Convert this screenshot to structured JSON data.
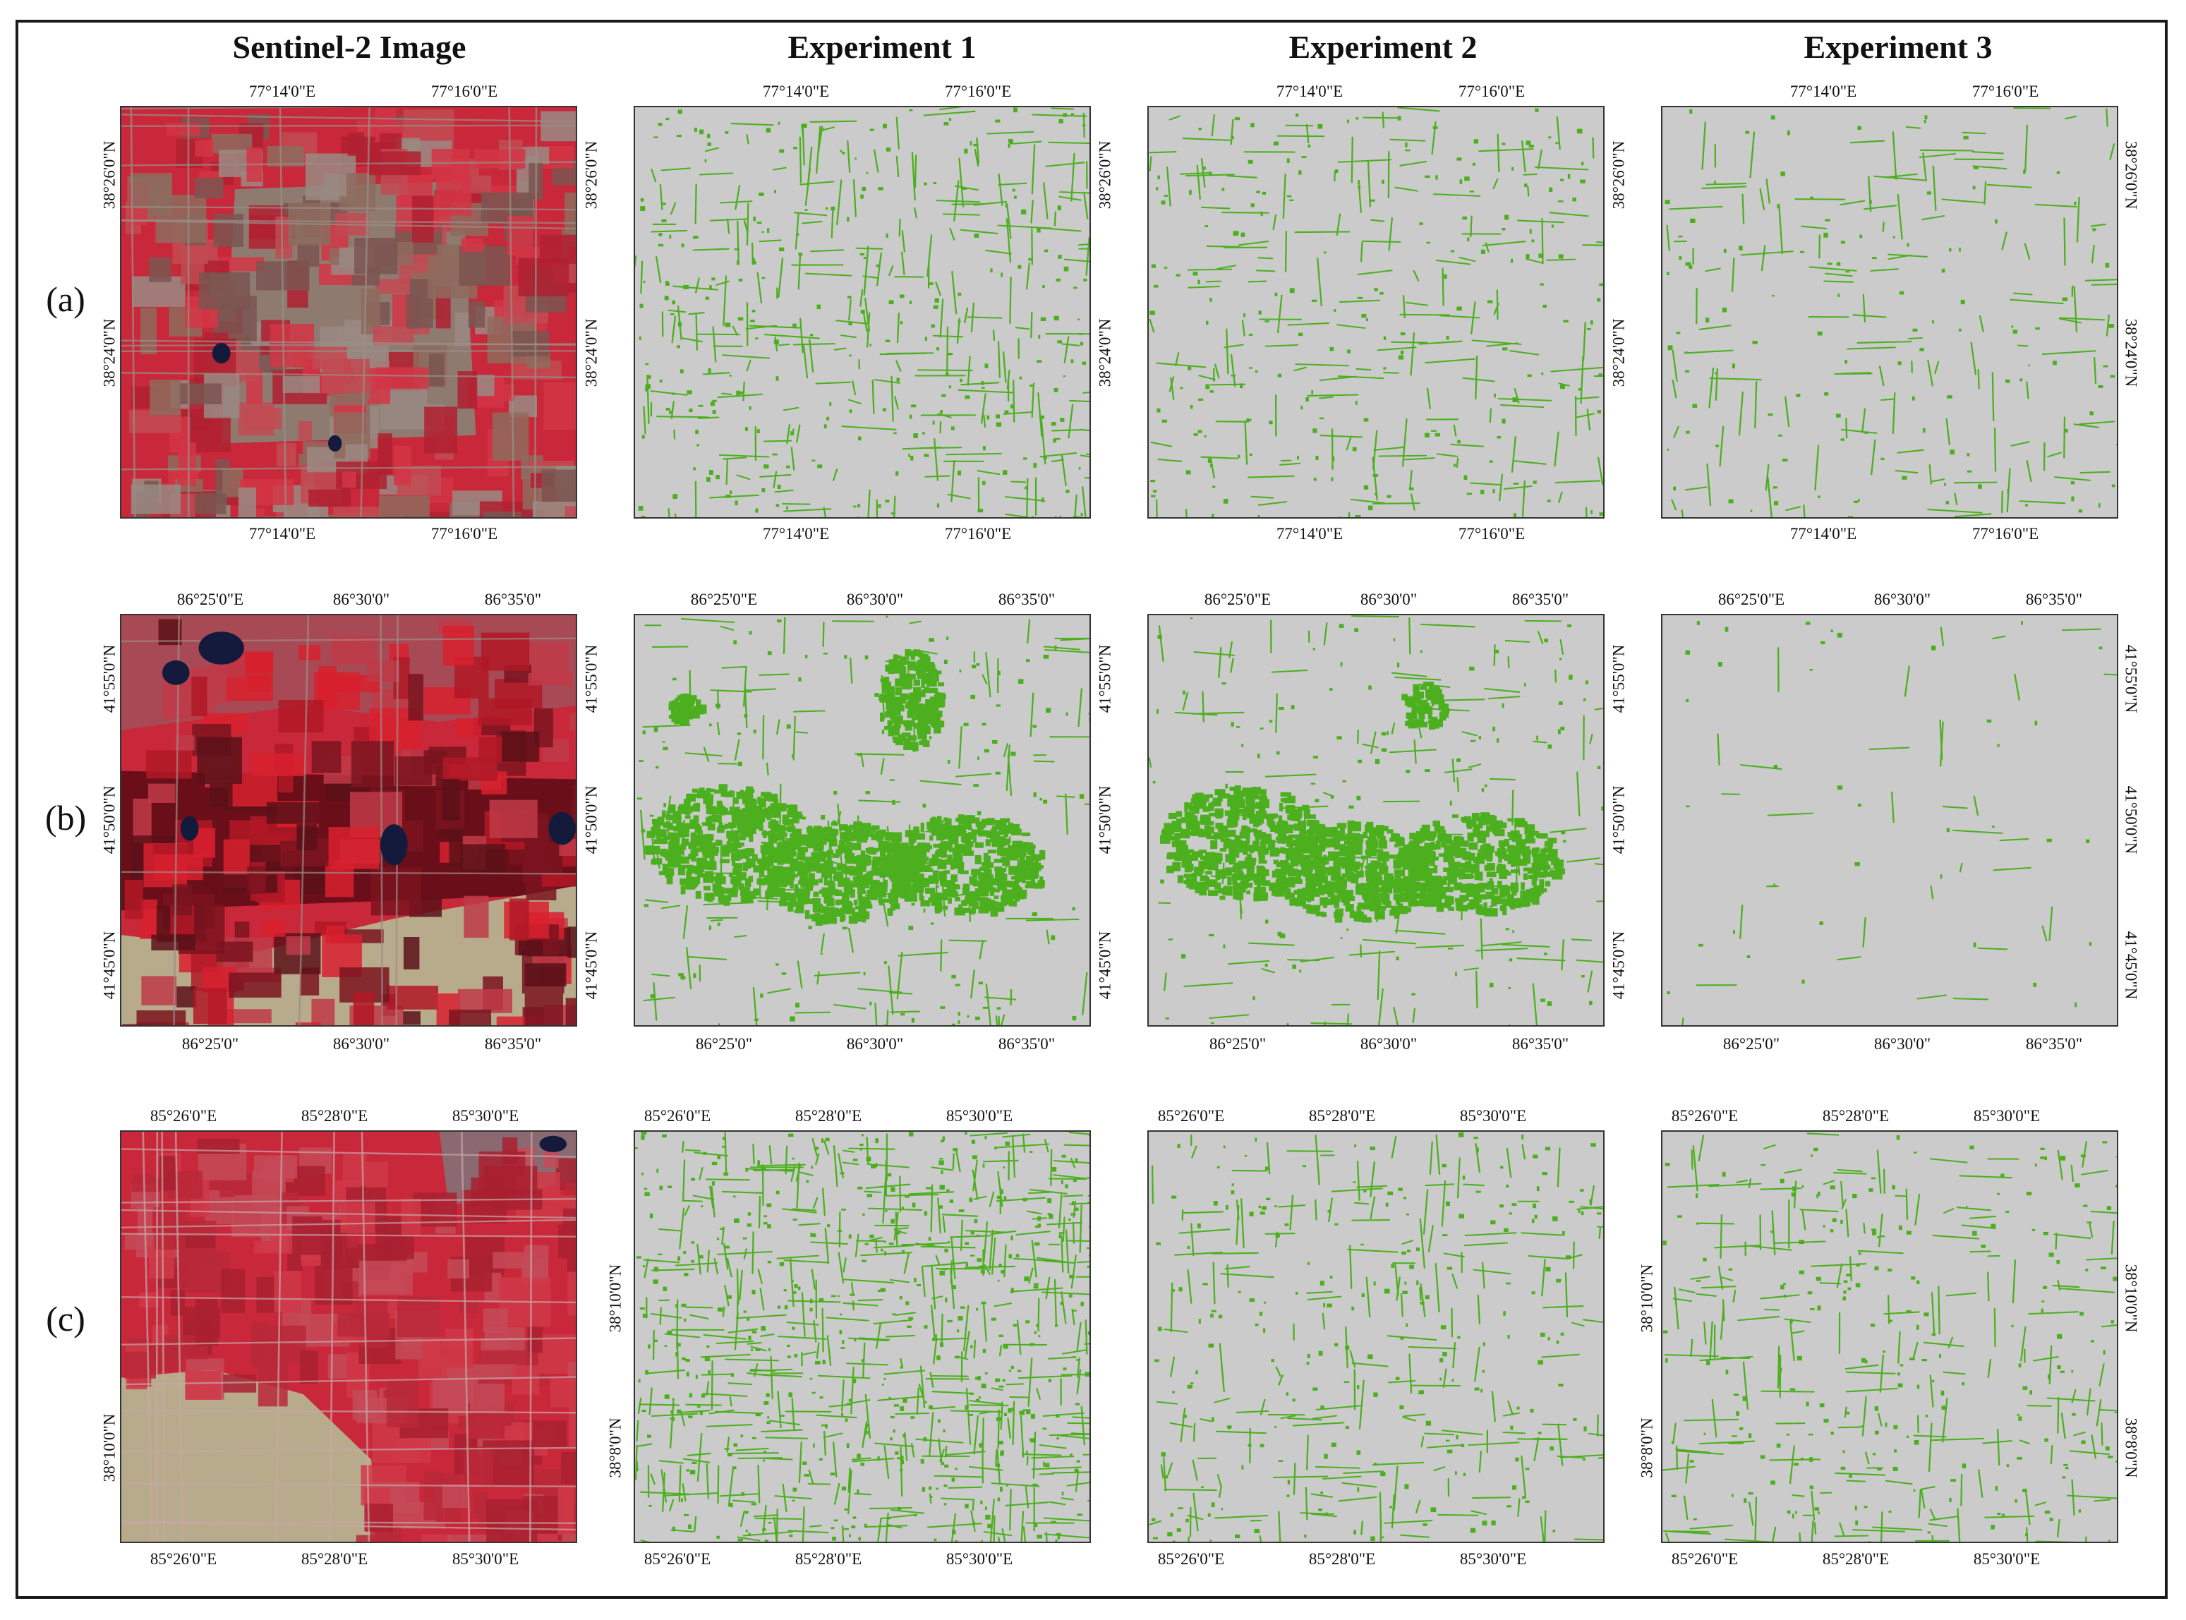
{
  "figure": {
    "column_titles": [
      "Sentinel-2 Image",
      "Experiment 1",
      "Experiment 2",
      "Experiment 3"
    ],
    "row_labels": [
      "(a)",
      "(b)",
      "(c)"
    ],
    "rows": [
      {
        "lon_ticks": [
          "77°14'0\"E",
          "77°16'0\"E"
        ],
        "lat_ticks": [
          "38°26'0\"N",
          "38°24'0\"N"
        ]
      },
      {
        "lon_ticks_top": [
          "86°25'0\"E",
          "86°30'0\"",
          "86°35'0\""
        ],
        "lon_ticks_bottom": [
          "86°25'0\"",
          "86°30'0\"",
          "86°35'0\""
        ],
        "lat_ticks": [
          "41°55'0\"N",
          "41°50'0\"N",
          "41°45'0\"N"
        ]
      },
      {
        "lon_ticks": [
          "85°26'0\"E",
          "85°28'0\"E",
          "85°30'0\"E"
        ],
        "lat_ticks": [
          "38°10'0\"N",
          "38°8'0\"N"
        ]
      }
    ]
  },
  "colors": {
    "frame": "#1a1a1a",
    "result_background": "#cbcbcb",
    "detection_green": "#4caf1e",
    "false_color_red": "#c8283a",
    "bare_soil": "#b8ab8c",
    "water": "#141a3c"
  }
}
